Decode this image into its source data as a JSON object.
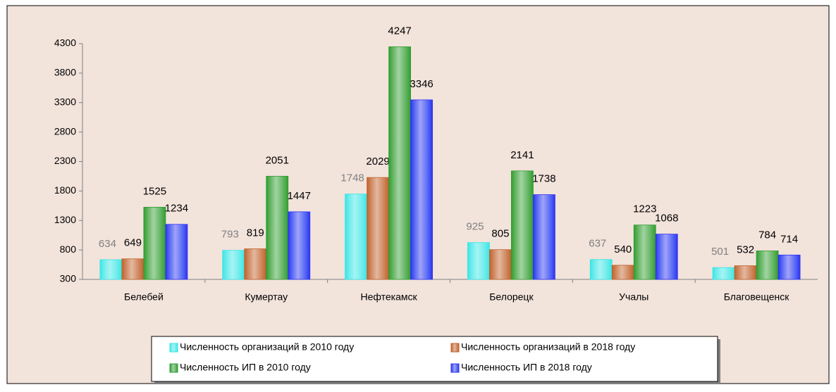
{
  "chart_data": {
    "type": "bar",
    "categories": [
      "Белебей",
      "Кумертау",
      "Нефтекамск",
      "Белорецк",
      "Учалы",
      "Благовещенск"
    ],
    "series": [
      {
        "name": "Численность организаций в 2010 году",
        "color": "#33e6e6",
        "label_color": "#808080",
        "values": [
          634,
          793,
          1748,
          925,
          637,
          501
        ]
      },
      {
        "name": "Численность организаций в 2018 году",
        "color": "#c0622a",
        "label_color": "#000000",
        "values": [
          649,
          819,
          2029,
          805,
          540,
          532
        ]
      },
      {
        "name": "Численность ИП в 2010 году",
        "color": "#2e9e2e",
        "label_color": "#000000",
        "values": [
          1525,
          2051,
          4247,
          2141,
          1223,
          784
        ]
      },
      {
        "name": "Численность ИП в 2018 году",
        "color": "#3030f0",
        "label_color": "#000000",
        "values": [
          1234,
          1447,
          3346,
          1738,
          1068,
          714
        ]
      }
    ],
    "ylim": [
      300,
      4300
    ],
    "yticks": [
      300,
      800,
      1300,
      1800,
      2300,
      2800,
      3300,
      3800,
      4300
    ],
    "grid": false,
    "legend": "bottom"
  }
}
